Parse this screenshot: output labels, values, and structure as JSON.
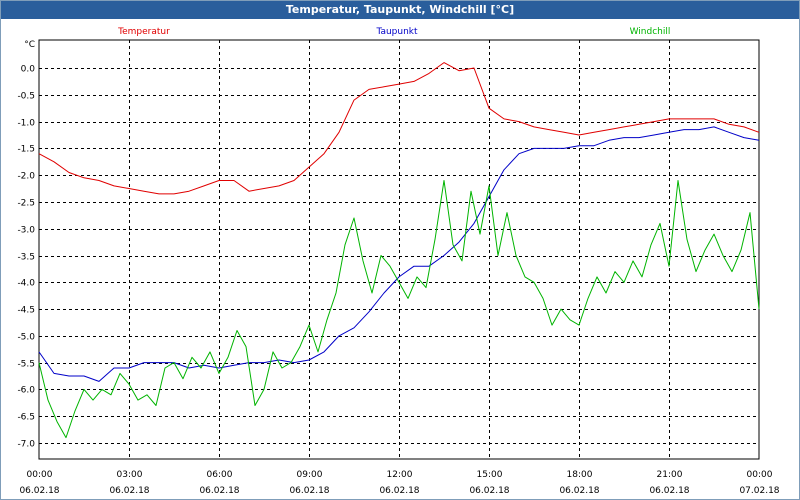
{
  "window": {
    "title": "Temperatur, Taupunkt, Windchill [°C]"
  },
  "chart_data": {
    "type": "line",
    "title": "Temperatur, Taupunkt, Windchill [°C]",
    "ylabel": "°C",
    "xlabel": "",
    "ylim": [
      -7.25,
      0.5
    ],
    "xlim": [
      0,
      24
    ],
    "yticks": [
      0.0,
      -0.5,
      -1.0,
      -1.5,
      -2.0,
      -2.5,
      -3.0,
      -3.5,
      -4.0,
      -4.5,
      -5.0,
      -5.5,
      -6.0,
      -6.5,
      -7.0
    ],
    "ytick_labels": [
      "0.0",
      "-0.5",
      "-1.0",
      "-1.5",
      "-2.0",
      "-2.5",
      "-3.0",
      "-3.5",
      "-4.0",
      "-4.5",
      "-5.0",
      "-5.5",
      "-6.0",
      "-6.5",
      "-7.0"
    ],
    "xticks": [
      {
        "value": 0,
        "time": "00:00",
        "date": "06.02.18"
      },
      {
        "value": 3,
        "time": "03:00",
        "date": "06.02.18"
      },
      {
        "value": 6,
        "time": "06:00",
        "date": "06.02.18"
      },
      {
        "value": 9,
        "time": "09:00",
        "date": "06.02.18"
      },
      {
        "value": 12,
        "time": "12:00",
        "date": "06.02.18"
      },
      {
        "value": 15,
        "time": "15:00",
        "date": "06.02.18"
      },
      {
        "value": 18,
        "time": "18:00",
        "date": "06.02.18"
      },
      {
        "value": 21,
        "time": "21:00",
        "date": "06.02.18"
      },
      {
        "value": 24,
        "time": "00:00",
        "date": "07.02.18"
      }
    ],
    "grid": true,
    "series": [
      {
        "name": "Temperatur",
        "color": "#e00000",
        "x": [
          0,
          0.5,
          1,
          1.5,
          2,
          2.5,
          3,
          3.5,
          4,
          4.5,
          5,
          5.5,
          6,
          6.5,
          7,
          7.5,
          8,
          8.5,
          9,
          9.5,
          10,
          10.5,
          11,
          11.5,
          12,
          12.5,
          13,
          13.5,
          14,
          14.5,
          15,
          15.5,
          16,
          16.5,
          17,
          17.5,
          18,
          18.5,
          19,
          19.5,
          20,
          20.5,
          21,
          21.5,
          22,
          22.5,
          23,
          23.5,
          24
        ],
        "values": [
          -1.6,
          -1.75,
          -1.95,
          -2.05,
          -2.1,
          -2.2,
          -2.25,
          -2.3,
          -2.35,
          -2.35,
          -2.3,
          -2.2,
          -2.1,
          -2.1,
          -2.3,
          -2.25,
          -2.2,
          -2.1,
          -1.85,
          -1.6,
          -1.2,
          -0.6,
          -0.4,
          -0.35,
          -0.3,
          -0.25,
          -0.1,
          0.1,
          -0.05,
          0.0,
          -0.75,
          -0.95,
          -1.0,
          -1.1,
          -1.15,
          -1.2,
          -1.25,
          -1.2,
          -1.15,
          -1.1,
          -1.05,
          -1.0,
          -0.95,
          -0.95,
          -0.95,
          -0.95,
          -1.05,
          -1.1,
          -1.2
        ]
      },
      {
        "name": "Taupunkt",
        "color": "#0000c8",
        "x": [
          0,
          0.5,
          1,
          1.5,
          2,
          2.5,
          3,
          3.5,
          4,
          4.5,
          5,
          5.5,
          6,
          6.5,
          7,
          7.5,
          8,
          8.5,
          9,
          9.5,
          10,
          10.5,
          11,
          11.5,
          12,
          12.5,
          13,
          13.5,
          14,
          14.5,
          15,
          15.5,
          16,
          16.5,
          17,
          17.5,
          18,
          18.5,
          19,
          19.5,
          20,
          20.5,
          21,
          21.5,
          22,
          22.5,
          23,
          23.5,
          24
        ],
        "values": [
          -5.3,
          -5.7,
          -5.75,
          -5.75,
          -5.85,
          -5.6,
          -5.6,
          -5.5,
          -5.5,
          -5.5,
          -5.6,
          -5.55,
          -5.6,
          -5.55,
          -5.5,
          -5.5,
          -5.45,
          -5.5,
          -5.45,
          -5.3,
          -5.0,
          -4.85,
          -4.55,
          -4.2,
          -3.9,
          -3.7,
          -3.7,
          -3.5,
          -3.25,
          -2.9,
          -2.4,
          -1.9,
          -1.6,
          -1.5,
          -1.5,
          -1.5,
          -1.45,
          -1.45,
          -1.35,
          -1.3,
          -1.3,
          -1.25,
          -1.2,
          -1.15,
          -1.15,
          -1.1,
          -1.2,
          -1.3,
          -1.35
        ]
      },
      {
        "name": "Windchill",
        "color": "#00b400",
        "x": [
          0,
          0.3,
          0.6,
          0.9,
          1.2,
          1.5,
          1.8,
          2.1,
          2.4,
          2.7,
          3.0,
          3.3,
          3.6,
          3.9,
          4.2,
          4.5,
          4.8,
          5.1,
          5.4,
          5.7,
          6.0,
          6.3,
          6.6,
          6.9,
          7.2,
          7.5,
          7.8,
          8.1,
          8.4,
          8.7,
          9.0,
          9.3,
          9.6,
          9.9,
          10.2,
          10.5,
          10.8,
          11.1,
          11.4,
          11.7,
          12.0,
          12.3,
          12.6,
          12.9,
          13.2,
          13.5,
          13.8,
          14.1,
          14.4,
          14.7,
          15.0,
          15.3,
          15.6,
          15.9,
          16.2,
          16.5,
          16.8,
          17.1,
          17.4,
          17.7,
          18.0,
          18.3,
          18.6,
          18.9,
          19.2,
          19.5,
          19.8,
          20.1,
          20.4,
          20.7,
          21.0,
          21.3,
          21.6,
          21.9,
          22.2,
          22.5,
          22.8,
          23.1,
          23.4,
          23.7,
          24.0
        ],
        "values": [
          -5.5,
          -6.2,
          -6.6,
          -6.9,
          -6.4,
          -6.0,
          -6.2,
          -6.0,
          -6.1,
          -5.7,
          -5.9,
          -6.2,
          -6.1,
          -6.3,
          -5.6,
          -5.5,
          -5.8,
          -5.4,
          -5.6,
          -5.3,
          -5.7,
          -5.4,
          -4.9,
          -5.2,
          -6.3,
          -6.0,
          -5.3,
          -5.6,
          -5.5,
          -5.2,
          -4.8,
          -5.3,
          -4.7,
          -4.2,
          -3.3,
          -2.8,
          -3.6,
          -4.2,
          -3.5,
          -3.7,
          -4.0,
          -4.3,
          -3.9,
          -4.1,
          -3.2,
          -2.1,
          -3.3,
          -3.6,
          -2.3,
          -3.1,
          -2.2,
          -3.5,
          -2.7,
          -3.5,
          -3.9,
          -4.0,
          -4.3,
          -4.8,
          -4.5,
          -4.7,
          -4.8,
          -4.3,
          -3.9,
          -4.2,
          -3.8,
          -4.0,
          -3.6,
          -3.9,
          -3.3,
          -2.9,
          -3.7,
          -2.1,
          -3.2,
          -3.8,
          -3.4,
          -3.1,
          -3.5,
          -3.8,
          -3.4,
          -2.7,
          -4.5
        ]
      }
    ]
  }
}
